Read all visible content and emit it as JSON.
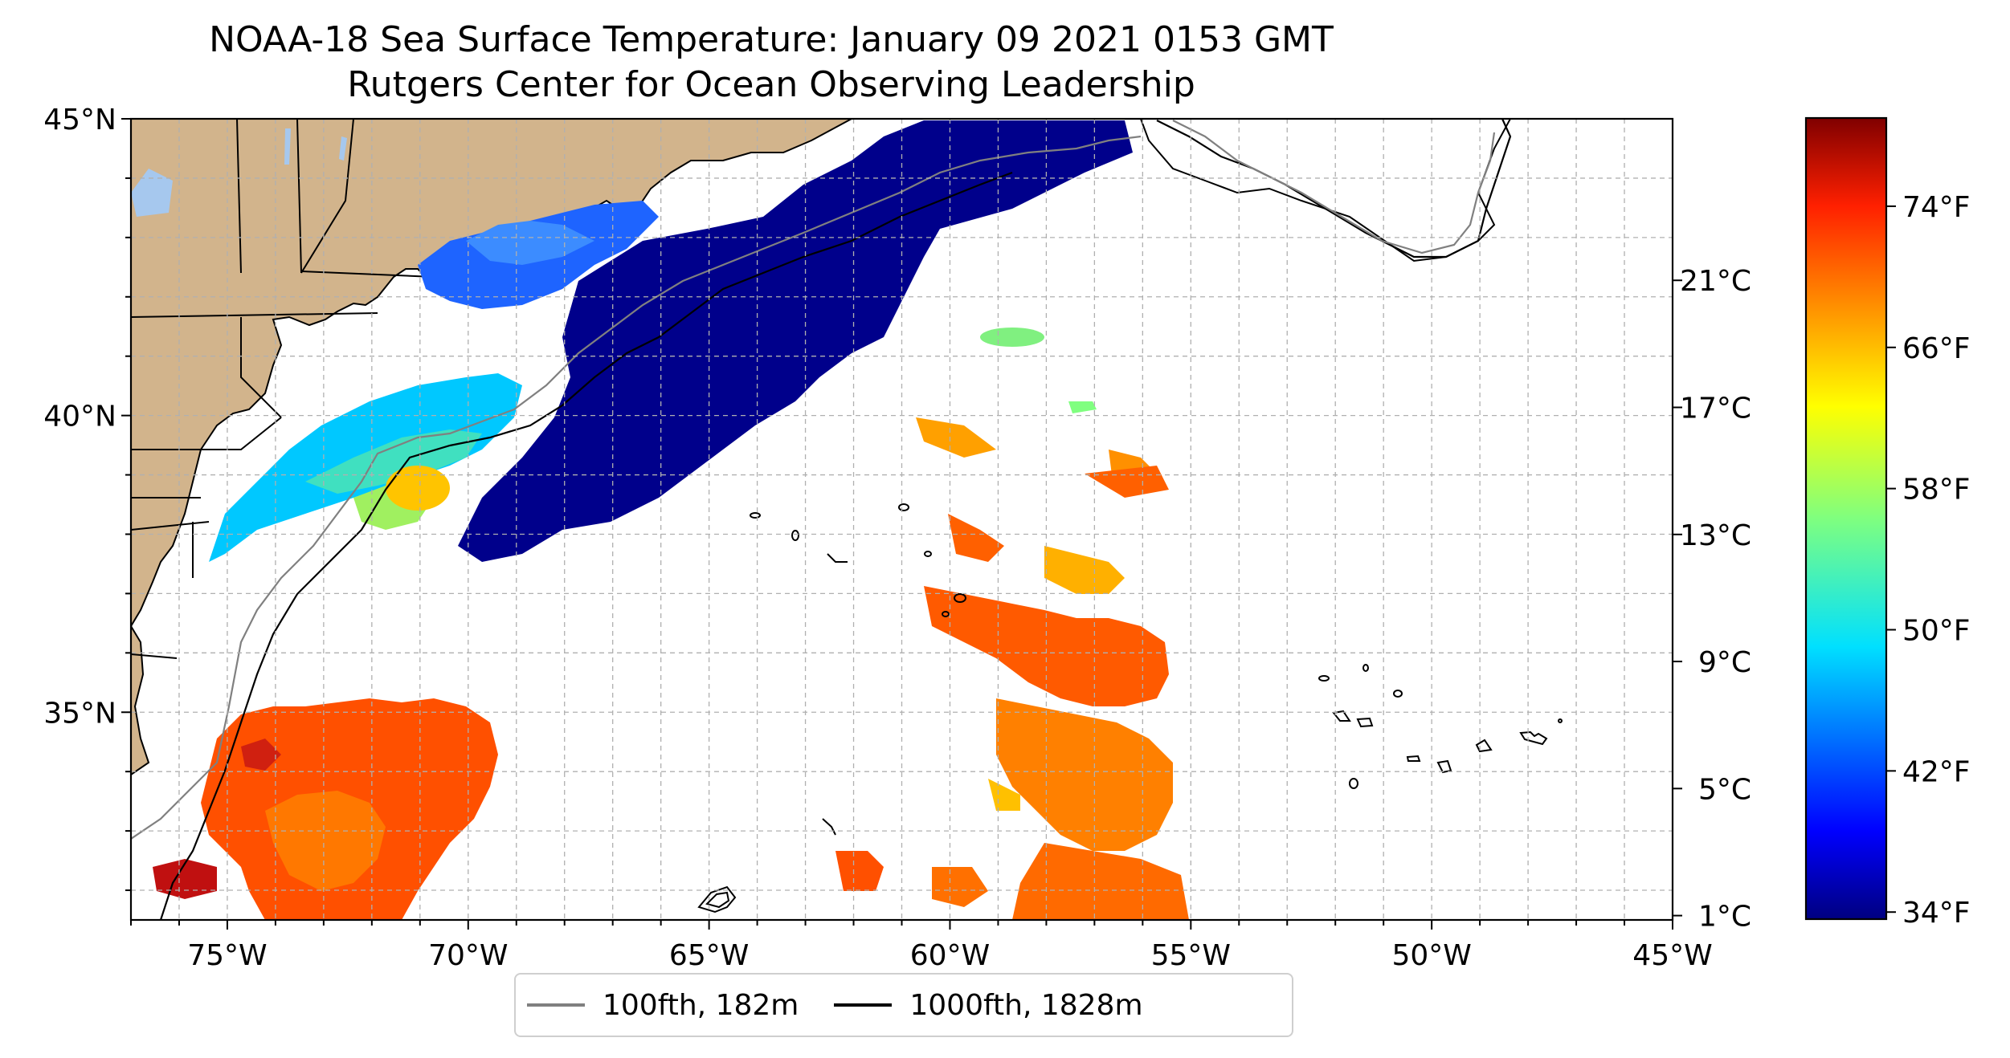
{
  "title": {
    "line1": "NOAA-18 Sea Surface Temperature: January 09 2021 0153 GMT",
    "line2": "Rutgers Center for Ocean Observing Leadership"
  },
  "map": {
    "lon_range": [
      -77,
      -45
    ],
    "lat_range": [
      31.5,
      45
    ],
    "lon_ticks": [
      {
        "value": -75,
        "label": "75°W"
      },
      {
        "value": -70,
        "label": "70°W"
      },
      {
        "value": -65,
        "label": "65°W"
      },
      {
        "value": -60,
        "label": "60°W"
      },
      {
        "value": -55,
        "label": "55°W"
      },
      {
        "value": -50,
        "label": "50°W"
      },
      {
        "value": -45,
        "label": "45°W"
      }
    ],
    "lat_ticks": [
      {
        "value": 45,
        "label": "45°N"
      },
      {
        "value": 40,
        "label": "40°N"
      },
      {
        "value": 35,
        "label": "35°N"
      }
    ],
    "grid": true,
    "land_color": "#d2b48c",
    "lake_color": "#a6c8ee",
    "contour_100_color": "#808080",
    "contour_1000_color": "#000000"
  },
  "colorbar": {
    "celsius_ticks": [
      {
        "value": 1,
        "label": "1°C"
      },
      {
        "value": 5,
        "label": "5°C"
      },
      {
        "value": 9,
        "label": "9°C"
      },
      {
        "value": 13,
        "label": "13°C"
      },
      {
        "value": 17,
        "label": "17°C"
      },
      {
        "value": 21,
        "label": "21°C"
      }
    ],
    "fahrenheit_ticks": [
      {
        "value": 34,
        "label": "34°F"
      },
      {
        "value": 42,
        "label": "42°F"
      },
      {
        "value": 50,
        "label": "50°F"
      },
      {
        "value": 58,
        "label": "58°F"
      },
      {
        "value": 66,
        "label": "66°F"
      },
      {
        "value": 74,
        "label": "74°F"
      }
    ],
    "colormap": "jet"
  },
  "legend": {
    "items": [
      {
        "label": "100fth, 182m",
        "color": "#808080"
      },
      {
        "label": "1000fth, 1828m",
        "color": "#000000"
      }
    ]
  }
}
